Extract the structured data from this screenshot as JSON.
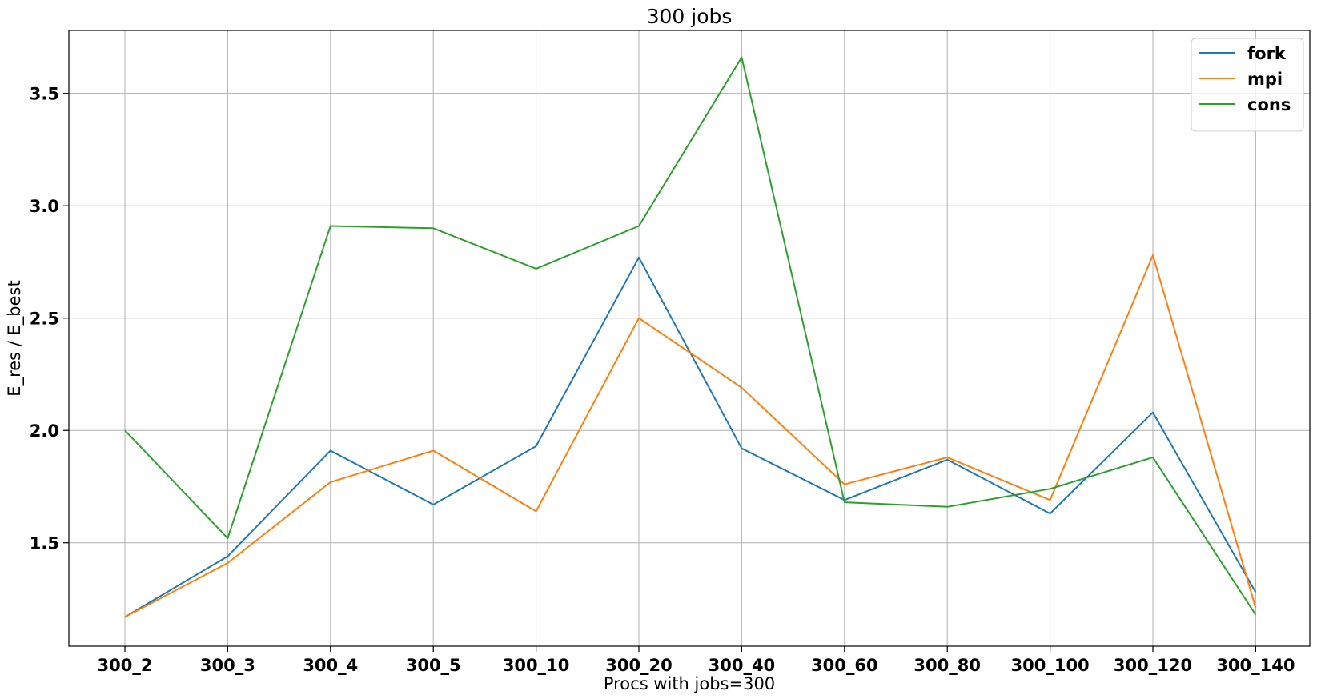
{
  "chart_data": {
    "type": "line",
    "title": "300 jobs",
    "xlabel": "Procs with jobs=300",
    "ylabel": "E_res / E_best",
    "categories": [
      "300_2",
      "300_3",
      "300_4",
      "300_5",
      "300_10",
      "300_20",
      "300_40",
      "300_60",
      "300_80",
      "300_100",
      "300_120",
      "300_140"
    ],
    "yticks": [
      1.5,
      2.0,
      2.5,
      3.0,
      3.5
    ],
    "ylim": [
      1.04,
      3.78
    ],
    "grid": true,
    "legend_position": "top-right",
    "series": [
      {
        "name": "fork",
        "color": "#1f77b4",
        "values": [
          1.17,
          1.44,
          1.91,
          1.67,
          1.93,
          2.77,
          1.92,
          1.69,
          1.87,
          1.63,
          2.08,
          1.28
        ]
      },
      {
        "name": "mpi",
        "color": "#ff7f0e",
        "values": [
          1.17,
          1.41,
          1.77,
          1.91,
          1.64,
          2.5,
          2.19,
          1.76,
          1.88,
          1.69,
          2.78,
          1.21
        ]
      },
      {
        "name": "cons",
        "color": "#2ca02c",
        "values": [
          2.0,
          1.52,
          2.91,
          2.9,
          2.72,
          2.91,
          3.66,
          1.68,
          1.66,
          1.74,
          1.88,
          1.18
        ]
      }
    ]
  }
}
